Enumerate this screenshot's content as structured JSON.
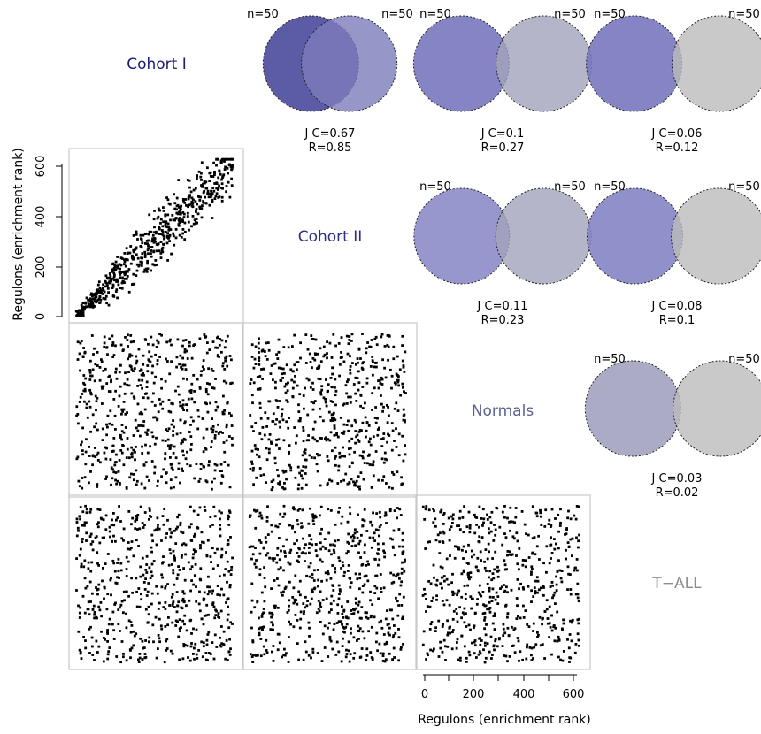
{
  "colors": {
    "cohort1": "#1a1a7a",
    "cohort2": "#2e2e8a",
    "normals": "#5a6390",
    "tall": "#8c8c8c"
  },
  "labels": {
    "ylabel": "Regulons (enrichment rank)",
    "xlabel": "Regulons (enrichment rank)",
    "cohort1": "Cohort I",
    "cohort2": "Cohort II",
    "normals": "Normals",
    "tall": "T−ALL"
  },
  "chart_data": {
    "type": "scatter",
    "title": "",
    "xlabel": "Regulons (enrichment rank)",
    "ylabel": "Regulons (enrichment rank)",
    "xlim": [
      0,
      640
    ],
    "ylim": [
      0,
      640
    ],
    "xticks": [
      "0",
      "200",
      "400",
      "600"
    ],
    "yticks": [
      "0",
      "200",
      "400",
      "600"
    ],
    "groups": [
      "Cohort I",
      "Cohort II",
      "Normals",
      "T−ALL"
    ],
    "scatter_panels": [
      {
        "id": "cohort1-vs-cohort2",
        "points": 600,
        "pattern": "positive-correlation",
        "R": 0.85
      },
      {
        "id": "cohort1-vs-normals",
        "points": 600,
        "pattern": "random"
      },
      {
        "id": "cohort2-vs-normals",
        "points": 600,
        "pattern": "random"
      },
      {
        "id": "cohort1-vs-tall",
        "points": 600,
        "pattern": "random"
      },
      {
        "id": "cohort2-vs-tall",
        "points": 600,
        "pattern": "random"
      },
      {
        "id": "normals-vs-tall",
        "points": 600,
        "pattern": "random"
      }
    ],
    "venn_panels": [
      {
        "id": "cohort1-cohort2",
        "n_left": "n=50",
        "n_right": "n=50",
        "jc_text": "J C=0.67",
        "r_text": "R=0.85",
        "jc": 0.67,
        "r": 0.85,
        "left_color": "#4a4a9c",
        "right_color": "#7c7cbc"
      },
      {
        "id": "cohort1-normals",
        "n_left": "n=50",
        "n_right": "n=50",
        "jc_text": "J C=0.1",
        "r_text": "R=0.27",
        "jc": 0.1,
        "r": 0.27,
        "left_color": "#7878c0",
        "right_color": "#a2a2bc"
      },
      {
        "id": "cohort1-tall",
        "n_left": "n=50",
        "n_right": "n=50",
        "jc_text": "J C=0.06",
        "r_text": "R=0.12",
        "jc": 0.06,
        "r": 0.12,
        "left_color": "#7878c0",
        "right_color": "#bcbcbc"
      },
      {
        "id": "cohort2-normals",
        "n_left": "n=50",
        "n_right": "n=50",
        "jc_text": "J C=0.11",
        "r_text": "R=0.23",
        "jc": 0.11,
        "r": 0.23,
        "left_color": "#8c8cc8",
        "right_color": "#a2a2bc"
      },
      {
        "id": "cohort2-tall",
        "n_left": "n=50",
        "n_right": "n=50",
        "jc_text": "J C=0.08",
        "r_text": "R=0.1",
        "jc": 0.08,
        "r": 0.1,
        "left_color": "#8484c4",
        "right_color": "#bcbcbc"
      },
      {
        "id": "normals-tall",
        "n_left": "n=50",
        "n_right": "n=50",
        "jc_text": "J C=0.03",
        "r_text": "R=0.02",
        "jc": 0.03,
        "r": 0.02,
        "left_color": "#a2a2c0",
        "right_color": "#bcbcbc"
      }
    ]
  }
}
